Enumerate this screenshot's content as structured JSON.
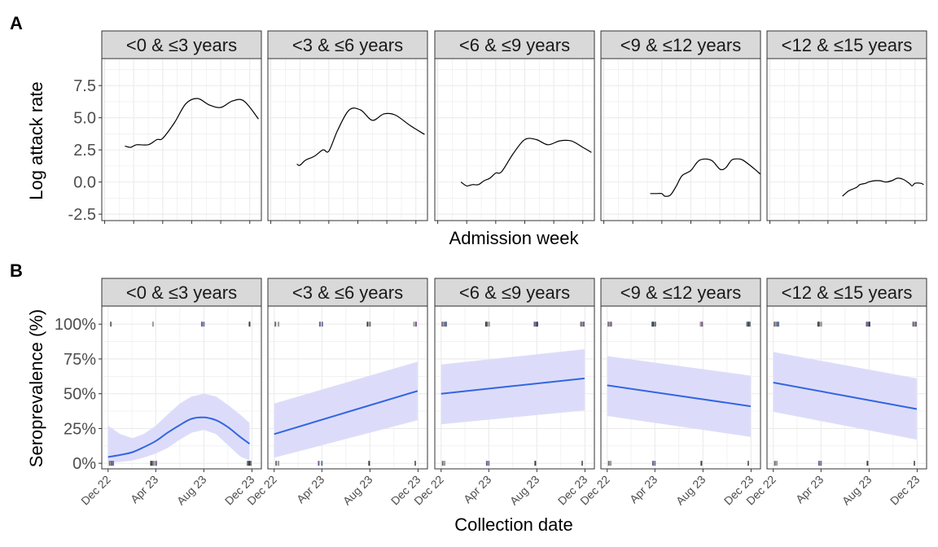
{
  "colors": {
    "strip_fill": "#d9d9d9",
    "panel_border": "#333333",
    "grid": "#ebebeb",
    "curve_a": "#000000",
    "curve_b": "#3366e0",
    "ribbon_b": "#dcdcfa",
    "rug": [
      "#6b6b6b",
      "#9a9a9a",
      "#7a5a8a",
      "#5a7a9a",
      "#3a3a3a"
    ]
  },
  "chart_data": [
    {
      "panel_label": "A",
      "type": "line",
      "xlabel": "Admission week",
      "ylabel": "Log attack rate",
      "ylim": [
        -3,
        9.6
      ],
      "yticks": [
        -2.5,
        0,
        2.5,
        5,
        7.5
      ],
      "ytick_labels": [
        "-2.5",
        "0.0",
        "2.5",
        "5.0",
        "7.5"
      ],
      "x_range_weeks": [
        -1,
        54
      ],
      "grid": true,
      "facets": [
        {
          "label": "<0 & ≤3 years",
          "series": [
            {
              "x": [
                7,
                9,
                11,
                15,
                18,
                20,
                24,
                28,
                32,
                36,
                40,
                44,
                48,
                53
              ],
              "y": [
                2.8,
                2.7,
                2.9,
                2.9,
                3.3,
                3.4,
                4.6,
                6.1,
                6.5,
                6.0,
                5.8,
                6.3,
                6.3,
                4.9
              ]
            }
          ]
        },
        {
          "label": "<3 & ≤6 years",
          "series": [
            {
              "x": [
                9,
                10,
                12,
                15,
                18,
                20,
                23,
                27,
                31,
                35,
                39,
                43,
                48,
                53
              ],
              "y": [
                1.4,
                1.3,
                1.7,
                2.0,
                2.5,
                2.4,
                4.0,
                5.6,
                5.6,
                4.8,
                5.3,
                5.2,
                4.4,
                3.7
              ]
            }
          ]
        },
        {
          "label": "<6 & ≤9 years",
          "series": [
            {
              "x": [
                8,
                10,
                12,
                14,
                16,
                18,
                20,
                22,
                26,
                30,
                34,
                38,
                42,
                46,
                50,
                53
              ],
              "y": [
                0.0,
                -0.3,
                -0.2,
                -0.2,
                0.1,
                0.3,
                0.7,
                0.8,
                2.2,
                3.3,
                3.3,
                2.9,
                3.2,
                3.2,
                2.7,
                2.3
              ]
            }
          ]
        },
        {
          "label": "<9 & ≤12 years",
          "series": [
            {
              "x": [
                16,
                18,
                20,
                21,
                23,
                25,
                27,
                30,
                33,
                37,
                40,
                42,
                44,
                46,
                48,
                52,
                54
              ],
              "y": [
                -0.9,
                -0.9,
                -0.9,
                -1.1,
                -1.0,
                -0.3,
                0.5,
                0.9,
                1.7,
                1.7,
                1.0,
                1.1,
                1.7,
                1.8,
                1.7,
                1.0,
                0.6
              ]
            }
          ]
        },
        {
          "label": "<12 & ≤15 years",
          "series": [
            {
              "x": [
                25,
                26,
                27,
                28,
                30,
                31,
                33,
                34,
                36,
                38,
                40,
                42,
                44,
                46,
                48,
                49,
                50,
                52,
                53
              ],
              "y": [
                -1.1,
                -0.9,
                -0.7,
                -0.6,
                -0.4,
                -0.2,
                -0.1,
                0.0,
                0.1,
                0.1,
                0.0,
                0.1,
                0.3,
                0.2,
                -0.1,
                -0.3,
                -0.1,
                -0.1,
                -0.2
              ]
            }
          ]
        }
      ]
    },
    {
      "panel_label": "B",
      "type": "line",
      "xlabel": "Collection date",
      "ylabel": "Seroprevalence (%)",
      "ylim": [
        -4,
        113
      ],
      "yticks": [
        0,
        25,
        50,
        75,
        100
      ],
      "ytick_labels": [
        "0%",
        "25%",
        "50%",
        "75%",
        "100%"
      ],
      "xlim": [
        "2022-11-15",
        "2023-12-25"
      ],
      "xticks": [
        "2022-12-01",
        "2023-04-01",
        "2023-08-01",
        "2023-12-01"
      ],
      "xtick_labels": [
        "Dec 22",
        "Apr 23",
        "Aug 23",
        "Dec 23"
      ],
      "grid": true,
      "facets": [
        {
          "label": "<0 & ≤3 years",
          "series": [
            {
              "x": [
                "2022-12-01",
                "2023-01-01",
                "2023-02-01",
                "2023-03-01",
                "2023-04-01",
                "2023-05-01",
                "2023-06-01",
                "2023-07-01",
                "2023-08-01",
                "2023-09-01",
                "2023-10-01",
                "2023-11-01",
                "2023-11-25"
              ],
              "y": [
                4.5,
                6,
                8,
                11.5,
                16,
                22,
                27.5,
                32,
                33,
                31,
                26,
                19,
                14
              ],
              "lower": [
                0.5,
                1,
                2,
                4,
                7,
                11,
                17,
                22,
                24,
                21,
                13,
                5,
                2
              ],
              "upper": [
                27,
                21,
                18,
                21,
                27,
                35,
                43,
                48,
                50,
                48,
                42,
                35,
                29
              ]
            }
          ],
          "rug_top": [
            "2022-12-08",
            "2023-03-25",
            "2023-07-27",
            "2023-08-01",
            "2023-11-25"
          ],
          "rug_bottom": [
            "2022-12-05",
            "2022-12-08",
            "2022-12-10",
            "2022-12-14",
            "2023-03-20",
            "2023-03-24",
            "2023-03-28",
            "2023-04-02",
            "2023-11-20",
            "2023-11-24",
            "2023-11-28"
          ]
        },
        {
          "label": "<3 & ≤6 years",
          "series": [
            {
              "x": [
                "2022-12-01",
                "2023-11-30"
              ],
              "y": [
                21,
                52
              ],
              "lower": [
                4,
                31
              ],
              "upper": [
                43,
                73
              ]
            }
          ],
          "rug_top": [
            "2022-12-04",
            "2022-12-12",
            "2023-03-27",
            "2023-04-02",
            "2023-07-26",
            "2023-08-01",
            "2023-11-21",
            "2023-11-26"
          ],
          "rug_bottom": [
            "2022-12-06",
            "2022-12-12",
            "2023-03-24",
            "2023-04-01",
            "2023-07-30",
            "2023-11-24"
          ]
        },
        {
          "label": "<6 & ≤9 years",
          "series": [
            {
              "x": [
                "2022-12-01",
                "2023-11-30"
              ],
              "y": [
                50,
                61
              ],
              "lower": [
                28,
                38
              ],
              "upper": [
                71,
                82
              ]
            }
          ],
          "rug_top": [
            "2022-12-04",
            "2022-12-07",
            "2022-12-11",
            "2022-12-14",
            "2023-03-25",
            "2023-03-28",
            "2023-04-02",
            "2023-07-26",
            "2023-07-30",
            "2023-08-02",
            "2023-11-21",
            "2023-11-25",
            "2023-11-28"
          ],
          "rug_bottom": [
            "2022-12-05",
            "2022-12-10",
            "2023-03-27",
            "2023-04-01",
            "2023-07-28",
            "2023-11-24"
          ]
        },
        {
          "label": "<9 & ≤12 years",
          "series": [
            {
              "x": [
                "2022-12-01",
                "2023-11-30"
              ],
              "y": [
                56,
                41
              ],
              "lower": [
                34,
                19
              ],
              "upper": [
                77,
                63
              ]
            }
          ],
          "rug_top": [
            "2022-12-04",
            "2022-12-07",
            "2022-12-11",
            "2023-03-25",
            "2023-03-28",
            "2023-04-02",
            "2023-07-26",
            "2023-07-30",
            "2023-11-21",
            "2023-11-25",
            "2023-11-28"
          ],
          "rug_bottom": [
            "2022-12-05",
            "2022-12-10",
            "2023-03-27",
            "2023-04-01",
            "2023-07-28",
            "2023-11-24"
          ]
        },
        {
          "label": "<12 & ≤15 years",
          "series": [
            {
              "x": [
                "2022-12-01",
                "2023-11-30"
              ],
              "y": [
                58,
                39
              ],
              "lower": [
                37,
                17
              ],
              "upper": [
                80,
                61
              ]
            }
          ],
          "rug_top": [
            "2022-12-04",
            "2022-12-07",
            "2022-12-11",
            "2022-12-14",
            "2023-03-25",
            "2023-03-28",
            "2023-04-02",
            "2023-07-26",
            "2023-07-30",
            "2023-08-02",
            "2023-11-21",
            "2023-11-25",
            "2023-11-28"
          ],
          "rug_bottom": [
            "2022-12-05",
            "2022-12-10",
            "2023-03-27",
            "2023-04-01",
            "2023-07-28",
            "2023-11-24"
          ]
        }
      ]
    }
  ]
}
